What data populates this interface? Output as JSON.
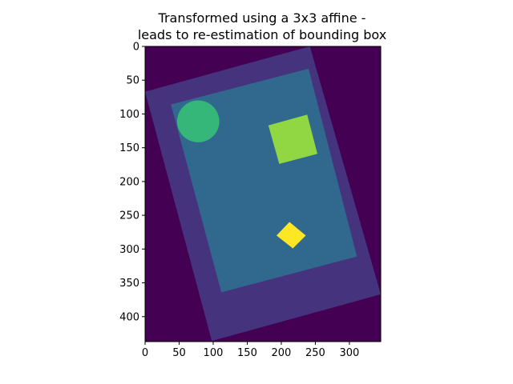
{
  "chart_data": {
    "type": "image",
    "title_lines": [
      "Transformed using a 3x3 affine -",
      "leads to re-estimation of bounding box"
    ],
    "xlim": [
      0,
      346
    ],
    "ylim": [
      437,
      0
    ],
    "xticks": [
      0,
      50,
      100,
      150,
      200,
      250,
      300
    ],
    "yticks": [
      0,
      50,
      100,
      150,
      200,
      250,
      300,
      350,
      400
    ],
    "background_color": "#440154",
    "grid": false,
    "legend": "none",
    "regions": [
      {
        "name": "outer-frame",
        "color": "#46337e",
        "points": [
          [
            0,
            67
          ],
          [
            242,
            0
          ],
          [
            346,
            367
          ],
          [
            98,
            436
          ]
        ]
      },
      {
        "name": "inner-panel",
        "color": "#31688e",
        "points": [
          [
            38,
            86
          ],
          [
            240,
            33
          ],
          [
            311,
            311
          ],
          [
            112,
            364
          ]
        ]
      },
      {
        "name": "circle",
        "color": "#35b779",
        "center": [
          78,
          111
        ],
        "radius": 31
      },
      {
        "name": "green-square",
        "color": "#90d743",
        "points": [
          [
            181,
            117
          ],
          [
            238,
            101
          ],
          [
            253,
            159
          ],
          [
            197,
            174
          ]
        ]
      },
      {
        "name": "yellow-diamond",
        "color": "#fde725",
        "points": [
          [
            193,
            280
          ],
          [
            212,
            260
          ],
          [
            236,
            280
          ],
          [
            217,
            299
          ]
        ]
      }
    ]
  }
}
